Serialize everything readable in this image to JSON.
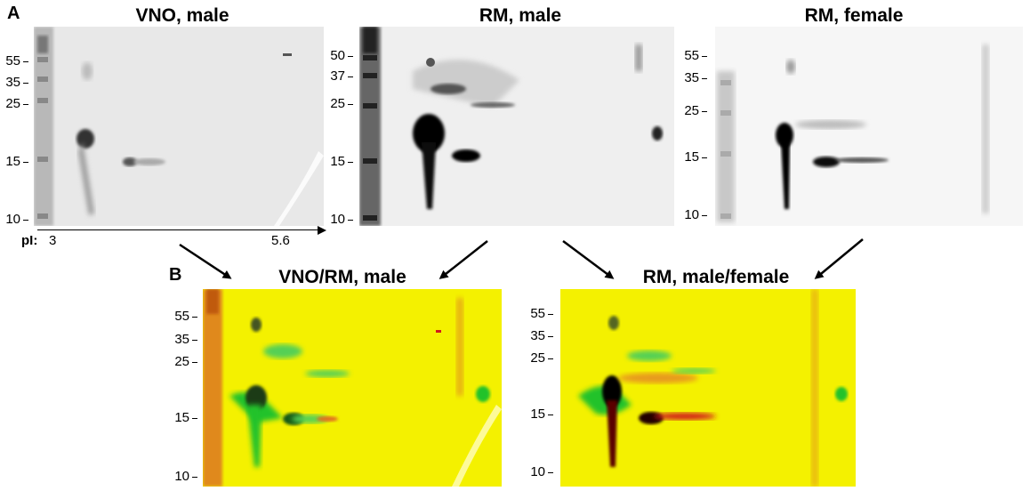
{
  "panel_a": {
    "letter": "A",
    "gels": [
      {
        "title": "VNO, male",
        "mw": [
          "55",
          "35",
          "25",
          "15",
          "10"
        ]
      },
      {
        "title": "RM, male",
        "mw": [
          "50",
          "37",
          "25",
          "15",
          "10"
        ]
      },
      {
        "title": "RM, female",
        "mw": [
          "55",
          "35",
          "25",
          "15",
          "10"
        ]
      }
    ],
    "pi_axis": {
      "label": "pI:",
      "start": "3",
      "end": "5.6"
    }
  },
  "panel_b": {
    "letter": "B",
    "gels": [
      {
        "title": "VNO/RM, male",
        "mw": [
          "55",
          "35",
          "25",
          "15",
          "10"
        ]
      },
      {
        "title": "RM, male/female",
        "mw": [
          "55",
          "35",
          "25",
          "15",
          "10"
        ]
      }
    ]
  },
  "colors": {
    "overlay_background": "#f4f100",
    "overlay_green": "#22c22a",
    "overlay_red": "#d11a1a",
    "gel_background": "#e9e9e9"
  }
}
